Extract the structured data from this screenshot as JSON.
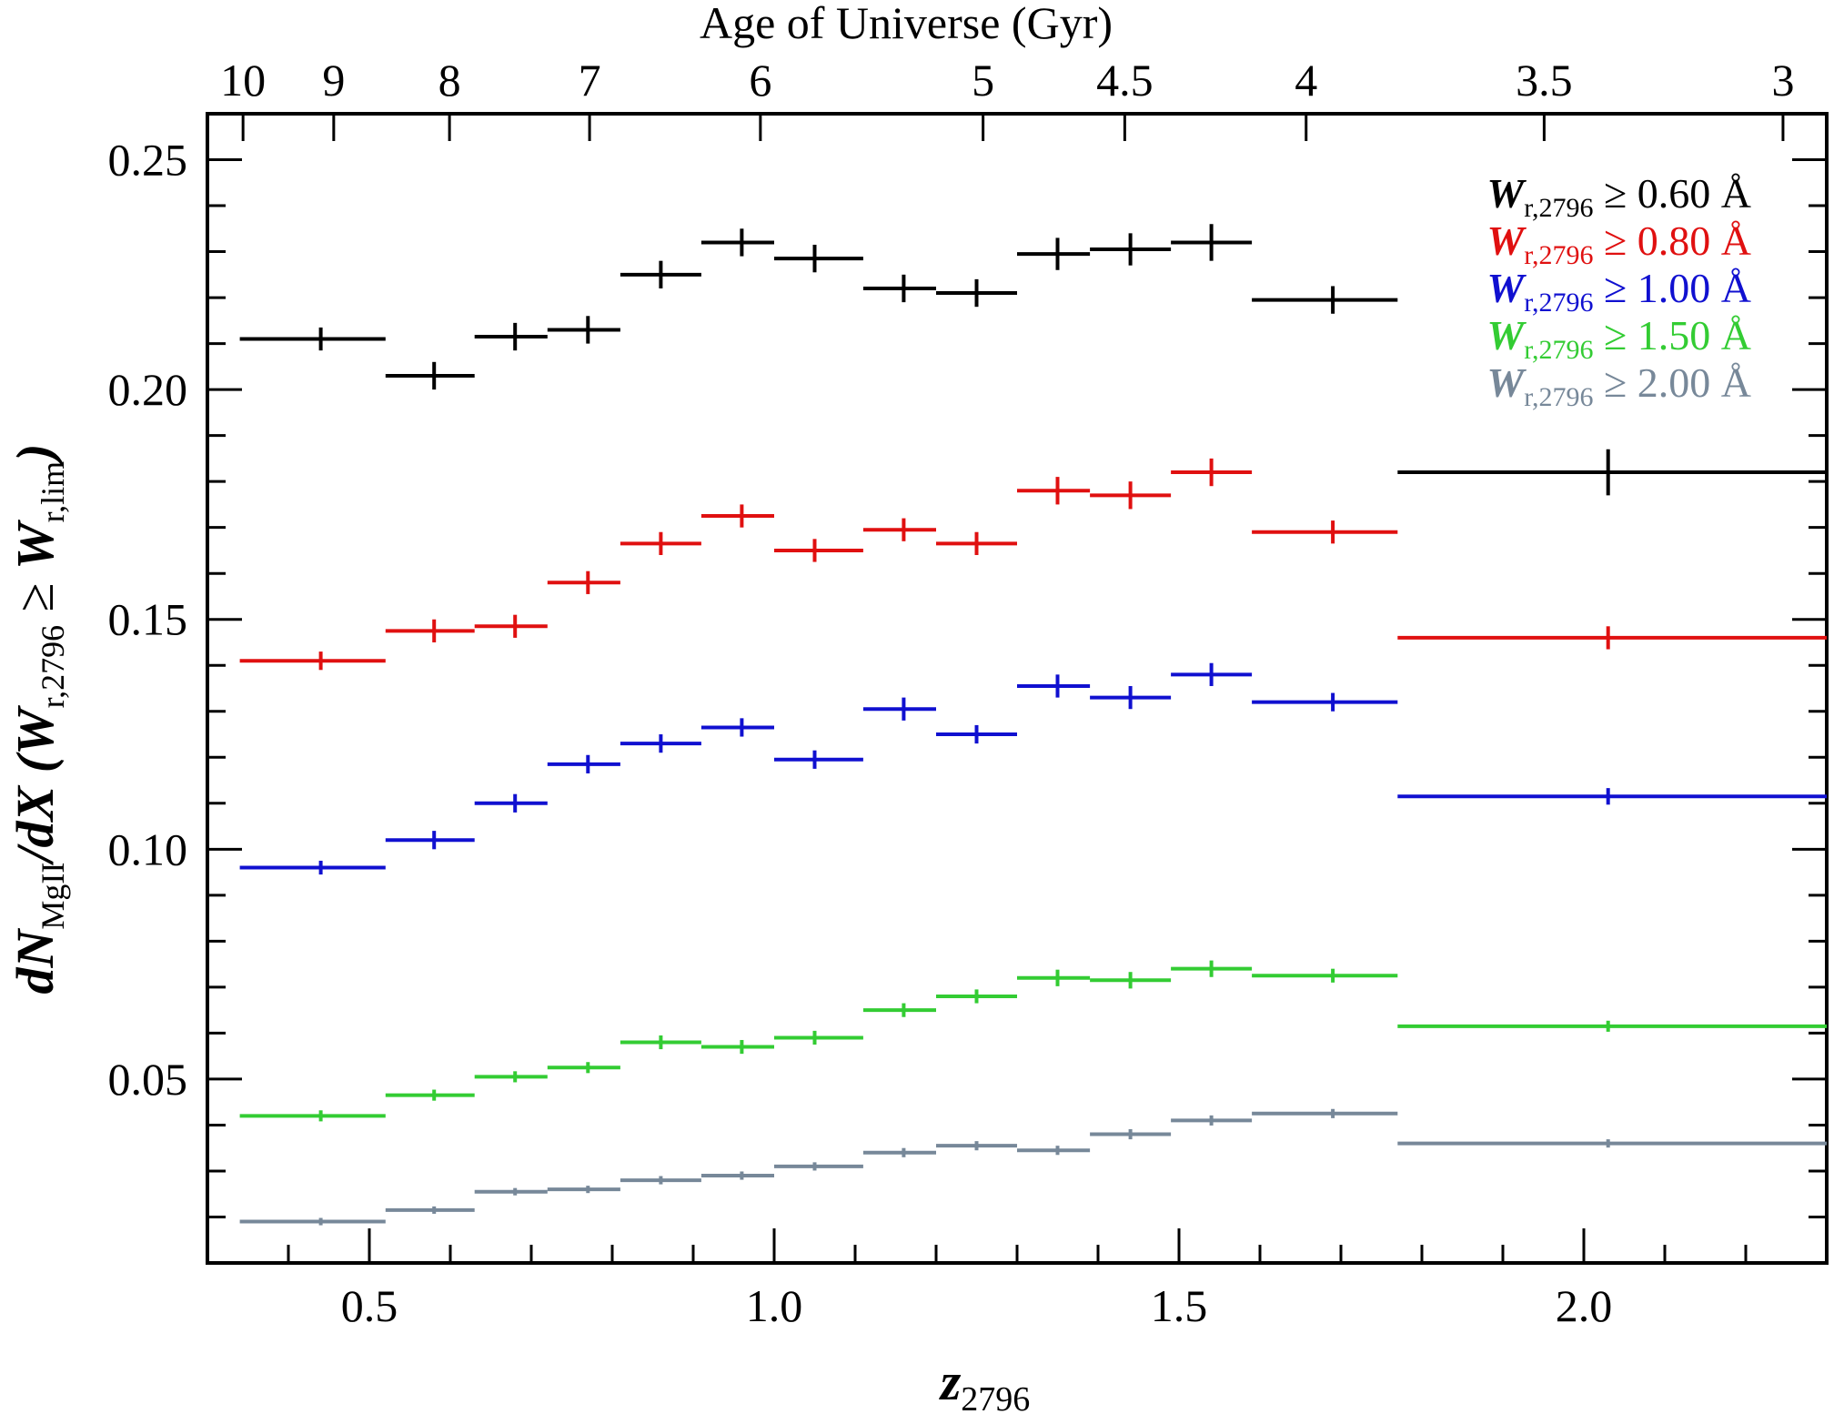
{
  "chart_data": {
    "type": "scatter",
    "title": "",
    "xlabel": "z",
    "xlabel_sub": "2796",
    "ylabel_parts": [
      "dN",
      "MgII",
      "/dX (",
      "W",
      "r,2796",
      " ≥ ",
      "W",
      "r,lim",
      ")"
    ],
    "top_xlabel": "Age of Universe (Gyr)",
    "xlim": [
      0.3,
      2.3
    ],
    "ylim": [
      0.01,
      0.26
    ],
    "x_ticks": [
      {
        "value": 0.5,
        "label": "0.5"
      },
      {
        "value": 1.0,
        "label": "1.0"
      },
      {
        "value": 1.5,
        "label": "1.5"
      },
      {
        "value": 2.0,
        "label": "2.0"
      }
    ],
    "x_minor_step": 0.1,
    "y_ticks": [
      {
        "value": 0.05,
        "label": "0.05"
      },
      {
        "value": 0.1,
        "label": "0.10"
      },
      {
        "value": 0.15,
        "label": "0.15"
      },
      {
        "value": 0.2,
        "label": "0.20"
      },
      {
        "value": 0.25,
        "label": "0.25"
      }
    ],
    "y_minor_step": 0.01,
    "top_ticks": [
      {
        "z": 0.344,
        "label": "10"
      },
      {
        "z": 0.456,
        "label": "9"
      },
      {
        "z": 0.599,
        "label": "8"
      },
      {
        "z": 0.772,
        "label": "7"
      },
      {
        "z": 0.983,
        "label": "6"
      },
      {
        "z": 1.258,
        "label": "5"
      },
      {
        "z": 1.433,
        "label": "4.5"
      },
      {
        "z": 1.657,
        "label": "4"
      },
      {
        "z": 1.951,
        "label": "3.5"
      },
      {
        "z": 2.246,
        "label": "3"
      }
    ],
    "legend_position": "top-right",
    "series": [
      {
        "name": "≥ 0.60 Å",
        "color": "#000000",
        "points": [
          {
            "x": 0.44,
            "xlo": 0.34,
            "xhi": 0.52,
            "y": 0.211,
            "err": 0.0025
          },
          {
            "x": 0.58,
            "xlo": 0.52,
            "xhi": 0.63,
            "y": 0.203,
            "err": 0.003
          },
          {
            "x": 0.68,
            "xlo": 0.63,
            "xhi": 0.72,
            "y": 0.2115,
            "err": 0.003
          },
          {
            "x": 0.77,
            "xlo": 0.72,
            "xhi": 0.81,
            "y": 0.213,
            "err": 0.003
          },
          {
            "x": 0.86,
            "xlo": 0.81,
            "xhi": 0.91,
            "y": 0.225,
            "err": 0.003
          },
          {
            "x": 0.96,
            "xlo": 0.91,
            "xhi": 1.0,
            "y": 0.232,
            "err": 0.003
          },
          {
            "x": 1.05,
            "xlo": 1.0,
            "xhi": 1.11,
            "y": 0.2285,
            "err": 0.003
          },
          {
            "x": 1.16,
            "xlo": 1.11,
            "xhi": 1.2,
            "y": 0.222,
            "err": 0.003
          },
          {
            "x": 1.25,
            "xlo": 1.2,
            "xhi": 1.3,
            "y": 0.221,
            "err": 0.003
          },
          {
            "x": 1.35,
            "xlo": 1.3,
            "xhi": 1.39,
            "y": 0.2295,
            "err": 0.0035
          },
          {
            "x": 1.44,
            "xlo": 1.39,
            "xhi": 1.49,
            "y": 0.2305,
            "err": 0.0035
          },
          {
            "x": 1.54,
            "xlo": 1.49,
            "xhi": 1.59,
            "y": 0.232,
            "err": 0.004
          },
          {
            "x": 1.69,
            "xlo": 1.59,
            "xhi": 1.77,
            "y": 0.2195,
            "err": 0.003
          },
          {
            "x": 2.03,
            "xlo": 1.77,
            "xhi": 2.3,
            "y": 0.182,
            "err": 0.005
          }
        ]
      },
      {
        "name": "≥ 0.80 Å",
        "color": "#e01010",
        "points": [
          {
            "x": 0.44,
            "xlo": 0.34,
            "xhi": 0.52,
            "y": 0.141,
            "err": 0.002
          },
          {
            "x": 0.58,
            "xlo": 0.52,
            "xhi": 0.63,
            "y": 0.1475,
            "err": 0.0025
          },
          {
            "x": 0.68,
            "xlo": 0.63,
            "xhi": 0.72,
            "y": 0.1485,
            "err": 0.0025
          },
          {
            "x": 0.77,
            "xlo": 0.72,
            "xhi": 0.81,
            "y": 0.158,
            "err": 0.0025
          },
          {
            "x": 0.86,
            "xlo": 0.81,
            "xhi": 0.91,
            "y": 0.1665,
            "err": 0.0025
          },
          {
            "x": 0.96,
            "xlo": 0.91,
            "xhi": 1.0,
            "y": 0.1725,
            "err": 0.0025
          },
          {
            "x": 1.05,
            "xlo": 1.0,
            "xhi": 1.11,
            "y": 0.165,
            "err": 0.0025
          },
          {
            "x": 1.16,
            "xlo": 1.11,
            "xhi": 1.2,
            "y": 0.1695,
            "err": 0.0025
          },
          {
            "x": 1.25,
            "xlo": 1.2,
            "xhi": 1.3,
            "y": 0.1665,
            "err": 0.0025
          },
          {
            "x": 1.35,
            "xlo": 1.3,
            "xhi": 1.39,
            "y": 0.178,
            "err": 0.003
          },
          {
            "x": 1.44,
            "xlo": 1.39,
            "xhi": 1.49,
            "y": 0.177,
            "err": 0.003
          },
          {
            "x": 1.54,
            "xlo": 1.49,
            "xhi": 1.59,
            "y": 0.182,
            "err": 0.003
          },
          {
            "x": 1.69,
            "xlo": 1.59,
            "xhi": 1.77,
            "y": 0.169,
            "err": 0.0025
          },
          {
            "x": 2.03,
            "xlo": 1.77,
            "xhi": 2.3,
            "y": 0.146,
            "err": 0.0025
          }
        ]
      },
      {
        "name": "≥ 1.00 Å",
        "color": "#1010d0",
        "points": [
          {
            "x": 0.44,
            "xlo": 0.34,
            "xhi": 0.52,
            "y": 0.096,
            "err": 0.0015
          },
          {
            "x": 0.58,
            "xlo": 0.52,
            "xhi": 0.63,
            "y": 0.102,
            "err": 0.002
          },
          {
            "x": 0.68,
            "xlo": 0.63,
            "xhi": 0.72,
            "y": 0.11,
            "err": 0.002
          },
          {
            "x": 0.77,
            "xlo": 0.72,
            "xhi": 0.81,
            "y": 0.1185,
            "err": 0.002
          },
          {
            "x": 0.86,
            "xlo": 0.81,
            "xhi": 0.91,
            "y": 0.123,
            "err": 0.002
          },
          {
            "x": 0.96,
            "xlo": 0.91,
            "xhi": 1.0,
            "y": 0.1265,
            "err": 0.002
          },
          {
            "x": 1.05,
            "xlo": 1.0,
            "xhi": 1.11,
            "y": 0.1195,
            "err": 0.002
          },
          {
            "x": 1.16,
            "xlo": 1.11,
            "xhi": 1.2,
            "y": 0.1305,
            "err": 0.0025
          },
          {
            "x": 1.25,
            "xlo": 1.2,
            "xhi": 1.3,
            "y": 0.125,
            "err": 0.002
          },
          {
            "x": 1.35,
            "xlo": 1.3,
            "xhi": 1.39,
            "y": 0.1355,
            "err": 0.0025
          },
          {
            "x": 1.44,
            "xlo": 1.39,
            "xhi": 1.49,
            "y": 0.133,
            "err": 0.0025
          },
          {
            "x": 1.54,
            "xlo": 1.49,
            "xhi": 1.59,
            "y": 0.138,
            "err": 0.0025
          },
          {
            "x": 1.69,
            "xlo": 1.59,
            "xhi": 1.77,
            "y": 0.132,
            "err": 0.002
          },
          {
            "x": 2.03,
            "xlo": 1.77,
            "xhi": 2.3,
            "y": 0.1115,
            "err": 0.0018
          }
        ]
      },
      {
        "name": "≥ 1.50 Å",
        "color": "#33cc33",
        "points": [
          {
            "x": 0.44,
            "xlo": 0.34,
            "xhi": 0.52,
            "y": 0.042,
            "err": 0.0012
          },
          {
            "x": 0.58,
            "xlo": 0.52,
            "xhi": 0.63,
            "y": 0.0465,
            "err": 0.0012
          },
          {
            "x": 0.68,
            "xlo": 0.63,
            "xhi": 0.72,
            "y": 0.0505,
            "err": 0.0012
          },
          {
            "x": 0.77,
            "xlo": 0.72,
            "xhi": 0.81,
            "y": 0.0525,
            "err": 0.0012
          },
          {
            "x": 0.86,
            "xlo": 0.81,
            "xhi": 0.91,
            "y": 0.058,
            "err": 0.0015
          },
          {
            "x": 0.96,
            "xlo": 0.91,
            "xhi": 1.0,
            "y": 0.057,
            "err": 0.0015
          },
          {
            "x": 1.05,
            "xlo": 1.0,
            "xhi": 1.11,
            "y": 0.059,
            "err": 0.0015
          },
          {
            "x": 1.16,
            "xlo": 1.11,
            "xhi": 1.2,
            "y": 0.065,
            "err": 0.0015
          },
          {
            "x": 1.25,
            "xlo": 1.2,
            "xhi": 1.3,
            "y": 0.068,
            "err": 0.0015
          },
          {
            "x": 1.35,
            "xlo": 1.3,
            "xhi": 1.39,
            "y": 0.072,
            "err": 0.0018
          },
          {
            "x": 1.44,
            "xlo": 1.39,
            "xhi": 1.49,
            "y": 0.0715,
            "err": 0.0018
          },
          {
            "x": 1.54,
            "xlo": 1.49,
            "xhi": 1.59,
            "y": 0.074,
            "err": 0.0018
          },
          {
            "x": 1.69,
            "xlo": 1.59,
            "xhi": 1.77,
            "y": 0.0725,
            "err": 0.0015
          },
          {
            "x": 2.03,
            "xlo": 1.77,
            "xhi": 2.3,
            "y": 0.0615,
            "err": 0.0012
          }
        ]
      },
      {
        "name": "≥ 2.00 Å",
        "color": "#778899",
        "points": [
          {
            "x": 0.44,
            "xlo": 0.34,
            "xhi": 0.52,
            "y": 0.019,
            "err": 0.0008
          },
          {
            "x": 0.58,
            "xlo": 0.52,
            "xhi": 0.63,
            "y": 0.0215,
            "err": 0.0008
          },
          {
            "x": 0.68,
            "xlo": 0.63,
            "xhi": 0.72,
            "y": 0.0255,
            "err": 0.0008
          },
          {
            "x": 0.77,
            "xlo": 0.72,
            "xhi": 0.81,
            "y": 0.026,
            "err": 0.0008
          },
          {
            "x": 0.86,
            "xlo": 0.81,
            "xhi": 0.91,
            "y": 0.028,
            "err": 0.0009
          },
          {
            "x": 0.96,
            "xlo": 0.91,
            "xhi": 1.0,
            "y": 0.029,
            "err": 0.0009
          },
          {
            "x": 1.05,
            "xlo": 1.0,
            "xhi": 1.11,
            "y": 0.031,
            "err": 0.0009
          },
          {
            "x": 1.16,
            "xlo": 1.11,
            "xhi": 1.2,
            "y": 0.034,
            "err": 0.001
          },
          {
            "x": 1.25,
            "xlo": 1.2,
            "xhi": 1.3,
            "y": 0.0355,
            "err": 0.001
          },
          {
            "x": 1.35,
            "xlo": 1.3,
            "xhi": 1.39,
            "y": 0.0345,
            "err": 0.001
          },
          {
            "x": 1.44,
            "xlo": 1.39,
            "xhi": 1.49,
            "y": 0.038,
            "err": 0.0011
          },
          {
            "x": 1.54,
            "xlo": 1.49,
            "xhi": 1.59,
            "y": 0.041,
            "err": 0.0011
          },
          {
            "x": 1.69,
            "xlo": 1.59,
            "xhi": 1.77,
            "y": 0.0425,
            "err": 0.001
          },
          {
            "x": 2.03,
            "xlo": 1.77,
            "xhi": 2.3,
            "y": 0.036,
            "err": 0.0009
          }
        ]
      }
    ],
    "legend_w": "W",
    "legend_sub": "r,2796"
  }
}
